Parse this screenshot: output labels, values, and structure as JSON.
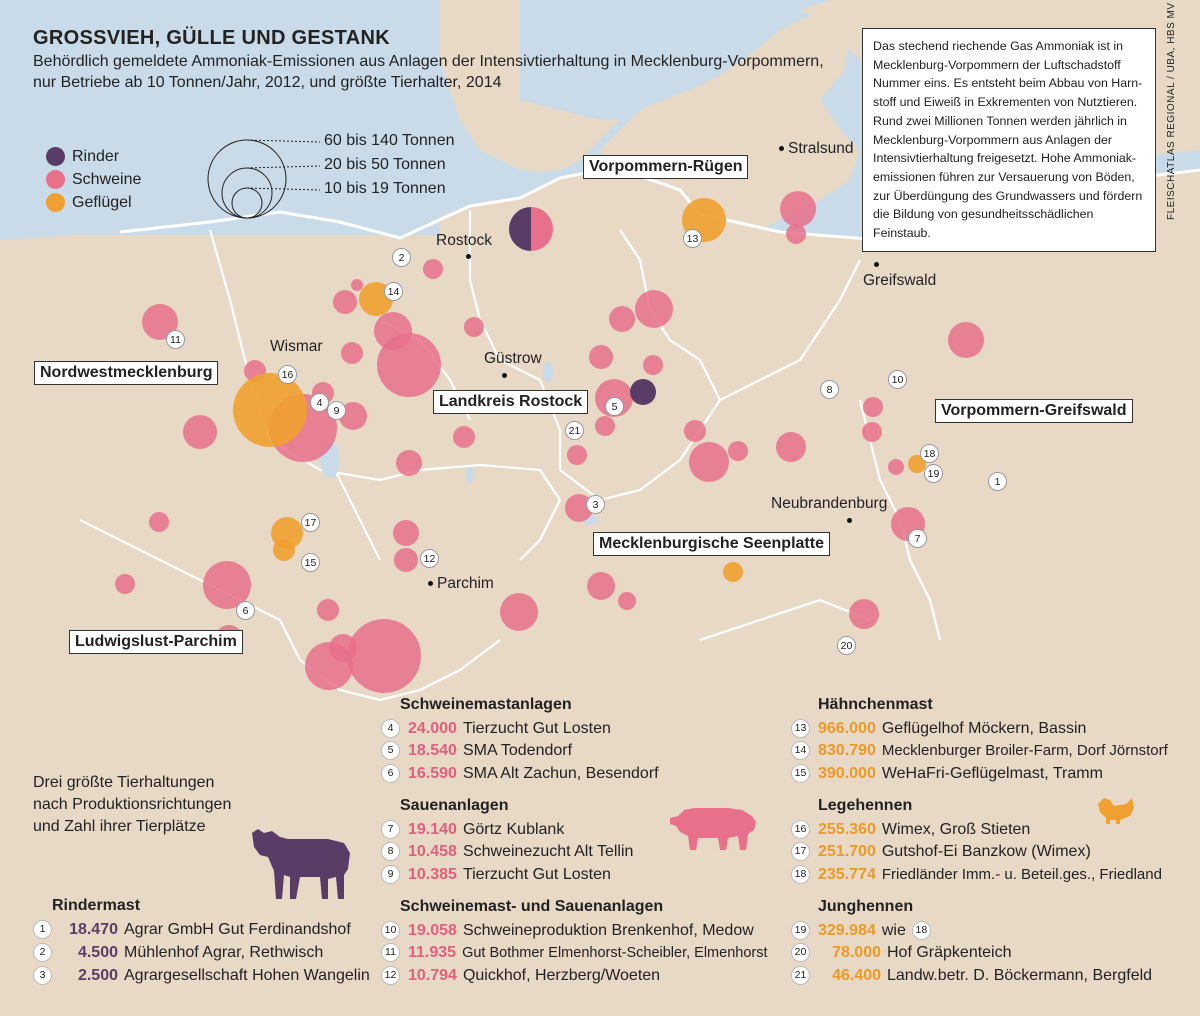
{
  "title": "GROSSVIEH, GÜLLE UND GESTANK",
  "subtitle_line1": "Behördlich gemeldete Ammoniak-Emissionen aus Anlagen der Intensivtierhaltung in Mecklenburg-Vorpommern,",
  "subtitle_line2": "nur Betriebe ab 10 Tonnen/Jahr, 2012, und größte Tierhalter, 2014",
  "infobox": "Das stechend riechende Gas Ammoniak ist in Mecklenburg-Vorpommern der Luftschadstoff Nummer eins. Es entsteht beim Abbau von Harn- stoff und Eiweiß in Exkrementen von Nutztieren. Rund zwei Millionen Tonnen werden jährlich in Mecklenburg-Vorpommern aus Anlagen der Intensivtierhaltung freigesetzt. Hohe Ammoniak- emissionen führen zur Versauerung von Böden, zur Überdüngung des Grundwassers und fördern die Bildung von gesundheitsschädlichen Feinstaub.",
  "credit": "FLEISCHATLAS REGIONAL / UBA, HBS MV",
  "colors": {
    "rinder": "#5a3d66",
    "schweine": "#e8708a",
    "gefluegel": "#f0a030",
    "land": "#e8d9c6",
    "water": "#c9dbe8"
  },
  "legend": {
    "categories": [
      {
        "label": "Rinder",
        "color": "#5a3d66"
      },
      {
        "label": "Schweine",
        "color": "#e8708a"
      },
      {
        "label": "Geflügel",
        "color": "#f0a030"
      }
    ],
    "sizes": [
      "60 bis 140 Tonnen",
      "20 bis 50 Tonnen",
      "10 bis 19 Tonnen"
    ]
  },
  "regions": [
    "Vorpommern-Rügen",
    "Nordwestmecklenburg",
    "Landkreis Rostock",
    "Vorpommern-Greifswald",
    "Mecklenburgische Seenplatte",
    "Ludwigslust-Parchim"
  ],
  "cities": [
    "Rostock",
    "Stralsund",
    "Greifswald",
    "Wismar",
    "Güstrow",
    "Neubrandenburg",
    "Parchim"
  ],
  "map_numbers": [
    "1",
    "2",
    "3",
    "4",
    "5",
    "6",
    "7",
    "8",
    "9",
    "10",
    "11",
    "12",
    "13",
    "14",
    "15",
    "16",
    "17",
    "18",
    "19",
    "20",
    "21"
  ],
  "intro": [
    "Drei größte Tierhaltungen",
    "nach Produktionsrichtungen",
    "und Zahl ihrer Tierplätze"
  ],
  "sections": {
    "rindermast": {
      "head": "Rindermast",
      "entries": [
        {
          "n": "1",
          "value": "18.470",
          "name": "Agrar GmbH Gut Ferdinandshof"
        },
        {
          "n": "2",
          "value": "4.500",
          "name": "Mühlenhof Agrar, Rethwisch"
        },
        {
          "n": "3",
          "value": "2.500",
          "name": "Agrargesellschaft Hohen Wangelin"
        }
      ]
    },
    "schweinemast": {
      "head": "Schweinemastanlagen",
      "entries": [
        {
          "n": "4",
          "value": "24.000",
          "name": "Tierzucht Gut Losten"
        },
        {
          "n": "5",
          "value": "18.540",
          "name": "SMA Todendorf"
        },
        {
          "n": "6",
          "value": "16.590",
          "name": "SMA Alt Zachun, Besendorf"
        }
      ]
    },
    "sauen": {
      "head": "Sauenanlagen",
      "entries": [
        {
          "n": "7",
          "value": "19.140",
          "name": "Görtz Kublank"
        },
        {
          "n": "8",
          "value": "10.458",
          "name": "Schweinezucht Alt Tellin"
        },
        {
          "n": "9",
          "value": "10.385",
          "name": "Tierzucht Gut Losten"
        }
      ]
    },
    "mastsauen": {
      "head": "Schweinemast- und Sauenanlagen",
      "entries": [
        {
          "n": "10",
          "value": "19.058",
          "name": "Schweineproduktion Brenkenhof, Medow"
        },
        {
          "n": "11",
          "value": "11.935",
          "name": "Gut Bothmer Elmenhorst-Scheibler, Elmenhorst"
        },
        {
          "n": "12",
          "value": "10.794",
          "name": "Quickhof, Herzberg/Woeten"
        }
      ]
    },
    "haehnchen": {
      "head": "Hähnchenmast",
      "entries": [
        {
          "n": "13",
          "value": "966.000",
          "name": "Geflügelhof Möckern, Bassin"
        },
        {
          "n": "14",
          "value": "830.790",
          "name": "Mecklenburger Broiler-Farm, Dorf Jörnstorf"
        },
        {
          "n": "15",
          "value": "390.000",
          "name": "WeHaFri-Geflügelmast, Tramm"
        }
      ]
    },
    "legehennen": {
      "head": "Legehennen",
      "entries": [
        {
          "n": "16",
          "value": "255.360",
          "name": "Wimex, Groß Stieten"
        },
        {
          "n": "17",
          "value": "251.700",
          "name": "Gutshof-Ei Banzkow (Wimex)"
        },
        {
          "n": "18",
          "value": "235.774",
          "name": "Friedländer Imm.- u. Beteil.ges., Friedland"
        }
      ]
    },
    "junghennen": {
      "head": "Junghennen",
      "entries": [
        {
          "n": "19",
          "value": "329.984",
          "name": "wie"
        },
        {
          "n": "20",
          "value": "78.000",
          "name": "Hof Gräpkenteich"
        },
        {
          "n": "21",
          "value": "46.400",
          "name": "Landw.betr. D. Böckermann, Bergfeld"
        }
      ],
      "ref": "18"
    }
  }
}
